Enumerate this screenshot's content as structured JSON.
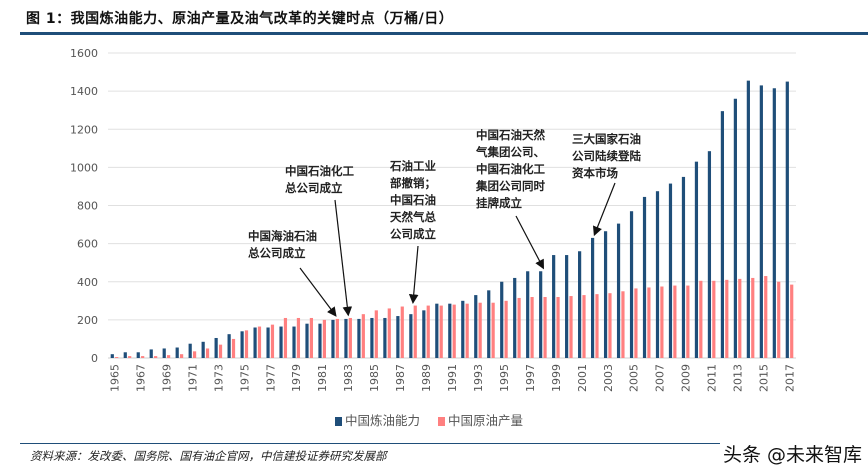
{
  "title": "图 1：我国炼油能力、原油产量及油气改革的关键时点（万桶/日）",
  "source": "资料来源：发改委、国务院、国有油企官网，中信建投证券研究发展部",
  "watermark": "头条 @未来智库",
  "colors": {
    "capacity": "#1f4e79",
    "production": "#ff8080",
    "accent": "#1f4e79"
  },
  "chart_data": {
    "type": "bar",
    "title": "我国炼油能力、原油产量及油气改革的关键时点（万桶/日）",
    "ylim": [
      0,
      1600
    ],
    "yticks": [
      0,
      200,
      400,
      600,
      800,
      1000,
      1200,
      1400,
      1600
    ],
    "grid": true,
    "legend_position": "bottom",
    "categories": [
      1965,
      1966,
      1967,
      1968,
      1969,
      1970,
      1971,
      1972,
      1973,
      1974,
      1975,
      1976,
      1977,
      1978,
      1979,
      1980,
      1981,
      1982,
      1983,
      1984,
      1985,
      1986,
      1987,
      1988,
      1989,
      1990,
      1991,
      1992,
      1993,
      1994,
      1995,
      1996,
      1997,
      1998,
      1999,
      2000,
      2001,
      2002,
      2003,
      2004,
      2005,
      2006,
      2007,
      2008,
      2009,
      2010,
      2011,
      2012,
      2013,
      2014,
      2015,
      2016,
      2017
    ],
    "xtick_labels": [
      "1965",
      "1967",
      "1969",
      "1971",
      "1973",
      "1975",
      "1977",
      "1979",
      "1981",
      "1983",
      "1985",
      "1987",
      "1989",
      "1991",
      "1993",
      "1995",
      "1997",
      "1999",
      "2001",
      "2003",
      "2005",
      "2007",
      "2009",
      "2011",
      "2013",
      "2015",
      "2017"
    ],
    "series": [
      {
        "name": "中国炼油能力",
        "values": [
          20,
          30,
          30,
          45,
          50,
          55,
          75,
          85,
          105,
          125,
          140,
          160,
          160,
          165,
          165,
          180,
          180,
          200,
          205,
          205,
          210,
          210,
          220,
          230,
          250,
          285,
          285,
          300,
          330,
          355,
          400,
          420,
          455,
          455,
          540,
          540,
          560,
          630,
          665,
          705,
          770,
          845,
          875,
          915,
          950,
          1030,
          1085,
          1295,
          1360,
          1455,
          1430,
          1415,
          1450
        ]
      },
      {
        "name": "中国原油产量",
        "values": [
          5,
          10,
          10,
          10,
          15,
          20,
          35,
          50,
          70,
          100,
          145,
          165,
          175,
          210,
          210,
          210,
          200,
          205,
          210,
          230,
          250,
          260,
          270,
          275,
          275,
          275,
          280,
          285,
          290,
          290,
          300,
          315,
          320,
          320,
          320,
          325,
          330,
          335,
          340,
          350,
          365,
          370,
          375,
          380,
          380,
          405,
          405,
          410,
          415,
          420,
          430,
          400,
          385
        ]
      }
    ],
    "annotations": [
      {
        "text": "中国海油石油\n总公司成立",
        "year": 1982
      },
      {
        "text": "中国石油化工\n总公司成立",
        "year": 1983
      },
      {
        "text": "石油工业\n部撤销；\n中国石油\n天然气总\n公司成立",
        "year": 1988
      },
      {
        "text": "中国石油天然\n气集团公司、\n中国石油化工\n集团公司同时\n挂牌成立",
        "year": 1998
      },
      {
        "text": "三大国家石油\n公司陆续登陆\n资本市场",
        "year": 2002
      }
    ]
  }
}
